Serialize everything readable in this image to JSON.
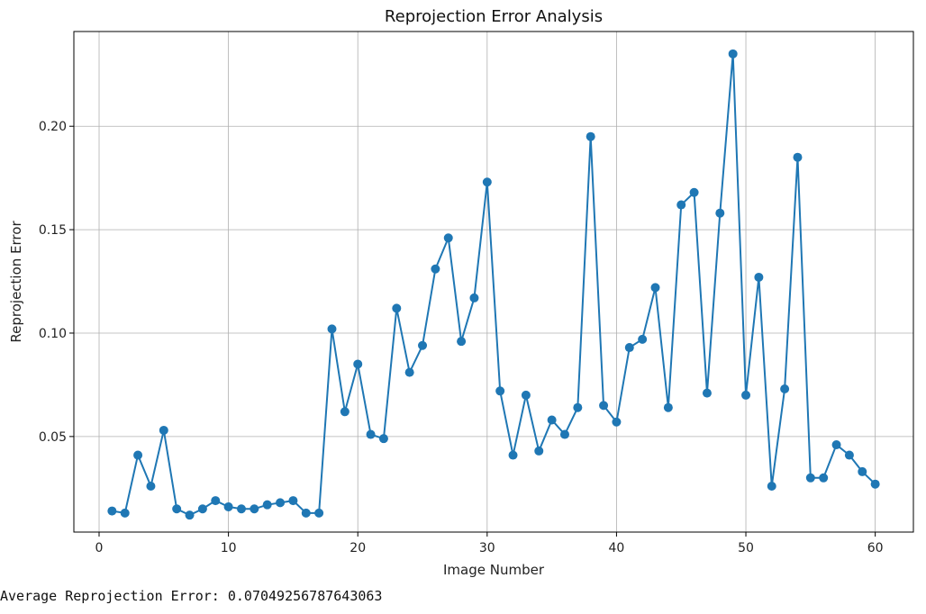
{
  "chart_data": {
    "type": "line",
    "title": "Reprojection Error Analysis",
    "xlabel": "Image Number",
    "ylabel": "Reprojection Error",
    "xlim": [
      -1.95,
      62.95
    ],
    "ylim": [
      0.0038,
      0.2458
    ],
    "xticks": [
      0,
      10,
      20,
      30,
      40,
      50,
      60
    ],
    "yticks": [
      0.05,
      0.1,
      0.15,
      0.2
    ],
    "ytick_labels": [
      "0.05",
      "0.10",
      "0.15",
      "0.20"
    ],
    "grid": true,
    "marker": "circle",
    "color": "#1f77b4",
    "x": [
      1,
      2,
      3,
      4,
      5,
      6,
      7,
      8,
      9,
      10,
      11,
      12,
      13,
      14,
      15,
      16,
      17,
      18,
      19,
      20,
      21,
      22,
      23,
      24,
      25,
      26,
      27,
      28,
      29,
      30,
      31,
      32,
      33,
      34,
      35,
      36,
      37,
      38,
      39,
      40,
      41,
      42,
      43,
      44,
      45,
      46,
      47,
      48,
      49,
      50,
      51,
      52,
      53,
      54,
      55,
      56,
      57,
      58,
      59,
      60
    ],
    "y": [
      0.014,
      0.013,
      0.041,
      0.026,
      0.053,
      0.015,
      0.012,
      0.015,
      0.019,
      0.016,
      0.015,
      0.015,
      0.017,
      0.018,
      0.019,
      0.013,
      0.013,
      0.102,
      0.062,
      0.085,
      0.051,
      0.049,
      0.112,
      0.081,
      0.094,
      0.131,
      0.146,
      0.096,
      0.117,
      0.173,
      0.072,
      0.041,
      0.07,
      0.043,
      0.058,
      0.051,
      0.064,
      0.195,
      0.065,
      0.057,
      0.093,
      0.097,
      0.122,
      0.064,
      0.162,
      0.168,
      0.071,
      0.158,
      0.235,
      0.07,
      0.127,
      0.026,
      0.073,
      0.185,
      0.03,
      0.03,
      0.046,
      0.041,
      0.033,
      0.027
    ]
  },
  "footer_text": "Average Reprojection Error: 0.07049256787643063"
}
